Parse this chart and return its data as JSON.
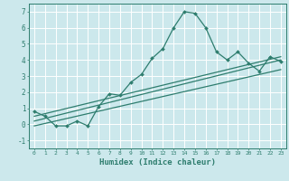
{
  "xlabel": "Humidex (Indice chaleur)",
  "ylabel": "",
  "bg_color": "#cce8ec",
  "grid_color": "#ffffff",
  "line_color": "#2e7d6e",
  "xlim": [
    -0.5,
    23.5
  ],
  "ylim": [
    -1.5,
    7.5
  ],
  "xticks": [
    0,
    1,
    2,
    3,
    4,
    5,
    6,
    7,
    8,
    9,
    10,
    11,
    12,
    13,
    14,
    15,
    16,
    17,
    18,
    19,
    20,
    21,
    22,
    23
  ],
  "yticks": [
    -1,
    0,
    1,
    2,
    3,
    4,
    5,
    6,
    7
  ],
  "main_x": [
    0,
    1,
    2,
    3,
    4,
    5,
    6,
    7,
    8,
    9,
    10,
    11,
    12,
    13,
    14,
    15,
    16,
    17,
    18,
    19,
    20,
    21,
    22,
    23
  ],
  "main_y": [
    0.8,
    0.5,
    -0.1,
    -0.1,
    0.2,
    -0.1,
    1.1,
    1.9,
    1.8,
    2.6,
    3.1,
    4.1,
    4.7,
    6.0,
    7.0,
    6.9,
    6.0,
    4.5,
    4.0,
    4.5,
    3.8,
    3.3,
    4.2,
    3.9
  ],
  "line1_x": [
    0,
    23
  ],
  "line1_y": [
    0.2,
    4.0
  ],
  "line2_x": [
    0,
    23
  ],
  "line2_y": [
    -0.1,
    3.4
  ],
  "line3_x": [
    0,
    23
  ],
  "line3_y": [
    0.5,
    4.2
  ]
}
